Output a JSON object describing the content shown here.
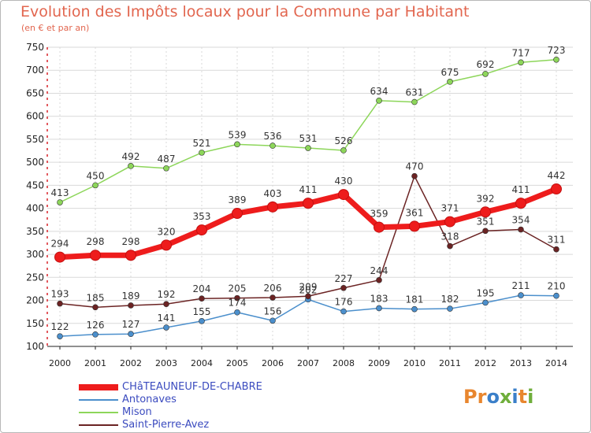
{
  "header": {
    "title": "Evolution des Impôts locaux pour la Commune par Habitant",
    "subtitle": "(en € et par an)"
  },
  "colors": {
    "title": "#e2664f",
    "grid": "#d9d9d9",
    "axis": "#d8232a",
    "legend_text": "#3b4bbf"
  },
  "logo": {
    "text": "Proxiti",
    "letters": [
      "P",
      "r",
      "o",
      "x",
      "i",
      "t",
      "i"
    ],
    "letter_colors": [
      "#e8862e",
      "#e8862e",
      "#3a7fc9",
      "#6fae3b",
      "#3a7fc9",
      "#e8862e",
      "#6fae3b"
    ]
  },
  "chart_data": {
    "type": "line",
    "title": "Evolution des Impôts locaux pour la Commune par Habitant",
    "subtitle": "(en € et par an)",
    "x": [
      2000,
      2001,
      2002,
      2003,
      2004,
      2005,
      2006,
      2007,
      2008,
      2009,
      2010,
      2011,
      2012,
      2013,
      2014
    ],
    "ylim": [
      100,
      750
    ],
    "yticks": [
      100,
      150,
      200,
      250,
      300,
      350,
      400,
      450,
      500,
      550,
      600,
      650,
      700,
      750
    ],
    "grid": true,
    "legend_position": "bottom-left",
    "series": [
      {
        "name": "CHâTEAUNEUF-DE-CHABRE",
        "color": "#ee1c1c",
        "emphasis": true,
        "values": [
          294,
          298,
          298,
          320,
          353,
          389,
          403,
          411,
          430,
          359,
          361,
          371,
          392,
          411,
          442
        ],
        "labels": [
          "294",
          "298",
          "298",
          "320",
          "353",
          "389",
          "403",
          "411",
          "430",
          "359",
          "361",
          "371",
          "392",
          "411",
          "442"
        ]
      },
      {
        "name": "Antonaves",
        "color": "#4b8fcc",
        "emphasis": false,
        "values": [
          122,
          126,
          127,
          141,
          155,
          174,
          156,
          202,
          176,
          183,
          181,
          182,
          195,
          211,
          210
        ],
        "labels": [
          "122",
          "126",
          "127",
          "141",
          "155",
          "174",
          "156",
          "202",
          "176",
          "183",
          "181",
          "182",
          "195",
          "211",
          "210"
        ]
      },
      {
        "name": "Mison",
        "color": "#8dd65a",
        "emphasis": false,
        "values": [
          413,
          450,
          492,
          487,
          521,
          539,
          536,
          531,
          526,
          634,
          631,
          675,
          692,
          717,
          723
        ],
        "labels": [
          "413",
          "450",
          "492",
          "487",
          "521",
          "539",
          "536",
          "531",
          "526",
          "634",
          "631",
          "675",
          "692",
          "717",
          "723"
        ]
      },
      {
        "name": "Saint-Pierre-Avez",
        "color": "#6b2323",
        "emphasis": false,
        "values": [
          193,
          185,
          189,
          192,
          204,
          205,
          206,
          209,
          227,
          244,
          470,
          318,
          351,
          354,
          311
        ],
        "labels": [
          "193",
          "185",
          "189",
          "192",
          "204",
          "205",
          "206",
          "209",
          "227",
          "244",
          "470",
          "318",
          "351",
          "354",
          "311"
        ]
      }
    ]
  }
}
